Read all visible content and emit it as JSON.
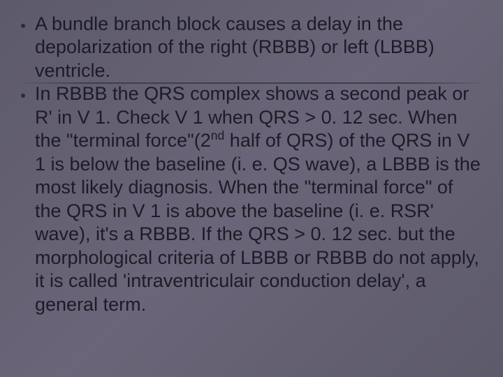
{
  "slide": {
    "background_gradient": [
      "#5d5a6a",
      "#6a6578",
      "#5d5a6a"
    ],
    "text_color": "#1d1b26",
    "bullet_color": "#2e2c38",
    "divider_color": "#3c3a48",
    "font_family": "Arial",
    "font_size_pt": 27,
    "bullets": [
      {
        "text": "A bundle branch block causes a delay in the depolarization of the right (RBBB) or left (LBBB) ventricle."
      },
      {
        "text_html": "In RBBB the QRS complex shows a second peak or R' in V 1. Check V 1 when QRS > 0. 12 sec. When the \"terminal force\"(2<sup>nd</sup> half of QRS) of the QRS in V 1 is below the baseline (i. e. QS wave), a LBBB is the most likely diagnosis. When the \"terminal force\" of the QRS in V 1 is above the baseline (i. e. RSR' wave), it's a RBBB. If the QRS > 0. 12 sec. but the morphological criteria of LBBB or RBBB do not apply, it is called 'intraventriculair conduction delay', a general term."
      }
    ]
  }
}
